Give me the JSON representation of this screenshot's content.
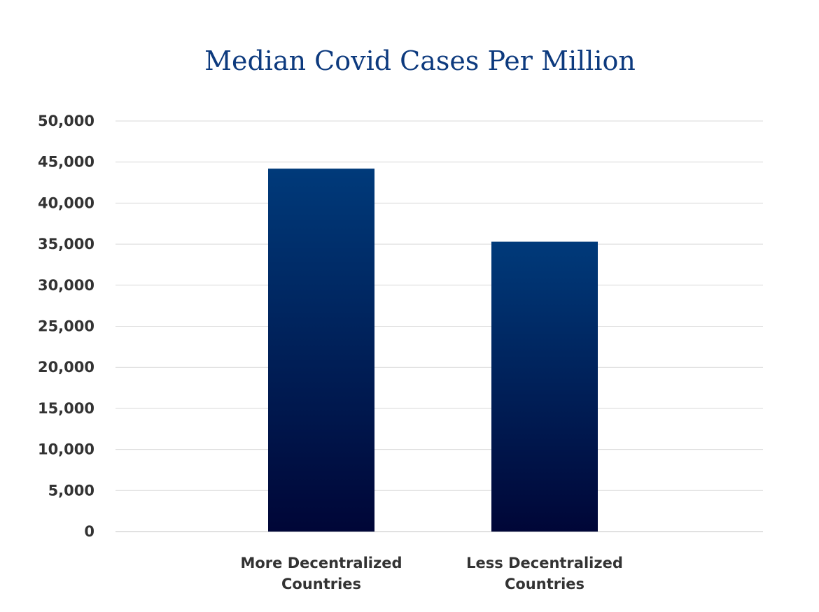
{
  "chart_data": {
    "type": "bar",
    "title": "Median Covid Cases Per Million",
    "categories": [
      [
        "More Decentralized",
        "Countries"
      ],
      [
        "Less Decentralized",
        "Countries"
      ]
    ],
    "values": [
      44200,
      35300
    ],
    "ylim": [
      0,
      50000
    ],
    "yticks": [
      0,
      5000,
      10000,
      15000,
      20000,
      25000,
      30000,
      35000,
      40000,
      45000,
      50000
    ],
    "ytick_labels": [
      "0",
      "5,000",
      "10,000",
      "15,000",
      "20,000",
      "25,000",
      "30,000",
      "35,000",
      "40,000",
      "45,000",
      "50,000"
    ],
    "grid": true,
    "legend": "none",
    "colors": {
      "bar_top": "#003a7a",
      "bar_bottom": "#000637",
      "title": "#0d3a7e",
      "grid": "#d9d9d9",
      "text": "#333333"
    }
  }
}
